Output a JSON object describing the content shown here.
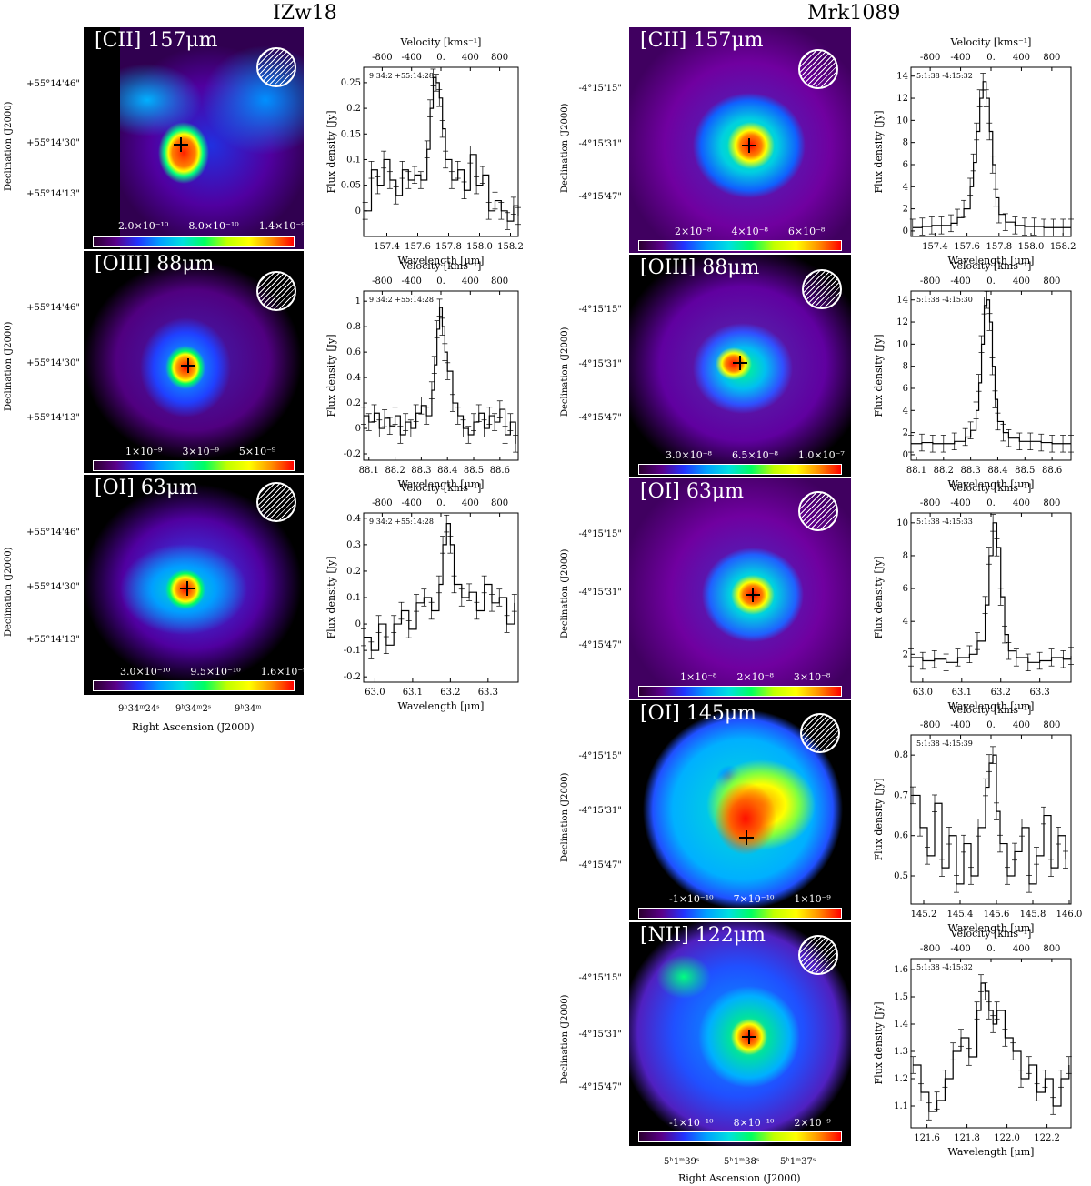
{
  "titles": {
    "left": "IZw18",
    "right": "Mrk1089"
  },
  "common": {
    "velocity_label": "Velocity [kms⁻¹]",
    "wavelength_label": "Wavelength [μm]",
    "flux_label": "Flux density [Jy]",
    "dec_axis_label": "Declination (J2000)",
    "ra_axis_label": "Right Ascension (J2000)",
    "velocity_ticks": [
      "-800",
      "-400",
      "0.",
      "400",
      "800"
    ]
  },
  "izw18": {
    "dec_ticks": [
      "+55°14'46\"",
      "+55°14'30\"",
      "+55°14'13\""
    ],
    "ra_ticks": [
      "9ʰ34ᵐ24ˢ",
      "9ʰ34ᵐ2ˢ",
      "9ʰ34ᵐ"
    ],
    "maps": [
      {
        "label": "[CII] 157μm",
        "cbar_ticks": [
          "2.0×10⁻¹⁰",
          "8.0×10⁻¹⁰",
          "1.4×10⁻⁹"
        ]
      },
      {
        "label": "[OIII] 88μm",
        "cbar_ticks": [
          "1×10⁻⁹",
          "3×10⁻⁹",
          "5×10⁻⁹"
        ]
      },
      {
        "label": "[OI] 63μm",
        "cbar_ticks": [
          "3.0×10⁻¹⁰",
          "9.5×10⁻¹⁰",
          "1.6×10⁻⁹"
        ]
      }
    ]
  },
  "mrk1089": {
    "dec_ticks": [
      "-4°15'15\"",
      "-4°15'31\"",
      "-4°15'47\""
    ],
    "ra_ticks": [
      "5ʰ1ᵐ39ˢ",
      "5ʰ1ᵐ38ˢ",
      "5ʰ1ᵐ37ˢ"
    ],
    "maps": [
      {
        "label": "[CII] 157μm",
        "cbar_ticks": [
          "2×10⁻⁸",
          "4×10⁻⁸",
          "6×10⁻⁸"
        ]
      },
      {
        "label": "[OIII] 88μm",
        "cbar_ticks": [
          "3.0×10⁻⁸",
          "6.5×10⁻⁸",
          "1.0×10⁻⁷"
        ]
      },
      {
        "label": "[OI] 63μm",
        "cbar_ticks": [
          "1×10⁻⁸",
          "2×10⁻⁸",
          "3×10⁻⁸"
        ]
      },
      {
        "label": "[OI] 145μm",
        "cbar_ticks": [
          "-1×10⁻¹⁰",
          "7×10⁻¹⁰",
          "1×10⁻⁹"
        ]
      },
      {
        "label": "[NII] 122μm",
        "cbar_ticks": [
          "-1×10⁻¹⁰",
          "8×10⁻¹⁰",
          "2×10⁻⁹"
        ]
      }
    ]
  },
  "chart_data": [
    {
      "type": "line",
      "id": "izw18-cii",
      "position_label": "9:34:2 +55:14:28",
      "xlim": [
        157.25,
        158.25
      ],
      "ylim": [
        -0.05,
        0.28
      ],
      "xticks": [
        157.4,
        157.6,
        157.8,
        158.0,
        158.2
      ],
      "yticks": [
        0.0,
        0.05,
        0.1,
        0.15,
        0.2,
        0.25
      ],
      "x": [
        157.26,
        157.3,
        157.34,
        157.38,
        157.42,
        157.46,
        157.5,
        157.54,
        157.58,
        157.62,
        157.66,
        157.68,
        157.7,
        157.72,
        157.74,
        157.76,
        157.78,
        157.82,
        157.86,
        157.9,
        157.94,
        157.98,
        158.02,
        158.06,
        158.1,
        158.14,
        158.18,
        158.22,
        158.25
      ],
      "y": [
        0.0,
        0.08,
        0.05,
        0.1,
        0.06,
        0.03,
        0.08,
        0.06,
        0.07,
        0.06,
        0.12,
        0.2,
        0.26,
        0.25,
        0.22,
        0.16,
        0.1,
        0.06,
        0.08,
        0.04,
        0.11,
        0.05,
        0.07,
        0.0,
        0.02,
        0.0,
        -0.02,
        0.01,
        -0.01
      ]
    },
    {
      "type": "line",
      "id": "izw18-oiii",
      "position_label": "9:34:2 +55:14:28",
      "xlim": [
        88.08,
        88.67
      ],
      "ylim": [
        -0.25,
        1.08
      ],
      "xticks": [
        88.1,
        88.2,
        88.3,
        88.4,
        88.5,
        88.6
      ],
      "yticks": [
        -0.2,
        0.0,
        0.2,
        0.4,
        0.6,
        0.8,
        1.0
      ],
      "x": [
        88.08,
        88.1,
        88.12,
        88.14,
        88.16,
        88.18,
        88.2,
        88.22,
        88.24,
        88.26,
        88.28,
        88.3,
        88.32,
        88.34,
        88.35,
        88.36,
        88.37,
        88.38,
        88.39,
        88.4,
        88.42,
        88.44,
        88.46,
        88.48,
        88.5,
        88.52,
        88.54,
        88.56,
        88.58,
        88.6,
        88.62,
        88.64,
        88.66
      ],
      "y": [
        0.1,
        0.05,
        0.12,
        0.0,
        0.08,
        0.02,
        0.1,
        -0.05,
        0.05,
        0.0,
        0.12,
        0.18,
        0.1,
        0.3,
        0.5,
        0.78,
        0.95,
        0.8,
        0.6,
        0.45,
        0.2,
        0.1,
        0.0,
        -0.05,
        0.05,
        0.12,
        0.0,
        0.1,
        0.05,
        0.15,
        -0.05,
        0.05,
        -0.12
      ]
    },
    {
      "type": "line",
      "id": "izw18-oi63",
      "position_label": "9:34:2 +55:14:28",
      "xlim": [
        62.97,
        63.38
      ],
      "ylim": [
        -0.22,
        0.42
      ],
      "xticks": [
        63.0,
        63.1,
        63.2,
        63.3
      ],
      "yticks": [
        -0.2,
        -0.1,
        0.0,
        0.1,
        0.2,
        0.3,
        0.4
      ],
      "x": [
        62.97,
        62.99,
        63.01,
        63.03,
        63.05,
        63.07,
        63.09,
        63.11,
        63.13,
        63.15,
        63.17,
        63.18,
        63.19,
        63.2,
        63.21,
        63.23,
        63.25,
        63.27,
        63.29,
        63.31,
        63.33,
        63.35,
        63.37
      ],
      "y": [
        -0.05,
        -0.1,
        0.0,
        -0.08,
        0.0,
        0.05,
        -0.02,
        0.08,
        0.1,
        0.05,
        0.15,
        0.3,
        0.38,
        0.3,
        0.15,
        0.1,
        0.12,
        0.05,
        0.15,
        0.08,
        0.1,
        0.0,
        0.08
      ]
    },
    {
      "type": "line",
      "id": "mrk1089-cii",
      "position_label": "5:1:38 -4:15:32",
      "xlim": [
        157.25,
        158.25
      ],
      "ylim": [
        -0.5,
        14.8
      ],
      "xticks": [
        157.4,
        157.6,
        157.8,
        158.0,
        158.2
      ],
      "yticks": [
        0,
        2,
        4,
        6,
        8,
        10,
        12,
        14
      ],
      "x": [
        157.26,
        157.32,
        157.38,
        157.44,
        157.5,
        157.54,
        157.58,
        157.62,
        157.64,
        157.66,
        157.68,
        157.7,
        157.72,
        157.74,
        157.76,
        157.78,
        157.8,
        157.84,
        157.9,
        157.96,
        158.02,
        158.08,
        158.14,
        158.2,
        158.25
      ],
      "y": [
        0.3,
        0.4,
        0.5,
        0.5,
        0.7,
        1.2,
        2.0,
        4.0,
        6.2,
        9.0,
        12.0,
        13.5,
        12.0,
        9.0,
        6.0,
        3.0,
        1.5,
        0.8,
        0.5,
        0.4,
        0.4,
        0.3,
        0.3,
        0.3,
        0.3
      ]
    },
    {
      "type": "line",
      "id": "mrk1089-oiii",
      "position_label": "5:1:38 -4:15:30",
      "xlim": [
        88.08,
        88.67
      ],
      "ylim": [
        -0.5,
        14.8
      ],
      "xticks": [
        88.1,
        88.2,
        88.3,
        88.4,
        88.5,
        88.6
      ],
      "yticks": [
        0,
        2,
        4,
        6,
        8,
        10,
        12,
        14
      ],
      "x": [
        88.08,
        88.12,
        88.16,
        88.2,
        88.24,
        88.28,
        88.3,
        88.32,
        88.33,
        88.34,
        88.35,
        88.36,
        88.37,
        88.38,
        88.39,
        88.4,
        88.42,
        88.44,
        88.48,
        88.52,
        88.56,
        88.6,
        88.64,
        88.67
      ],
      "y": [
        1.0,
        1.1,
        1.0,
        1.0,
        1.2,
        1.6,
        2.2,
        4.0,
        6.5,
        10.0,
        13.5,
        14.0,
        12.0,
        8.0,
        5.0,
        3.0,
        2.0,
        1.5,
        1.2,
        1.2,
        1.1,
        1.0,
        1.0,
        1.0
      ]
    },
    {
      "type": "line",
      "id": "mrk1089-oi63",
      "position_label": "5:1:38 -4:15:33",
      "xlim": [
        62.97,
        63.38
      ],
      "ylim": [
        0.3,
        10.6
      ],
      "xticks": [
        63.0,
        63.1,
        63.2,
        63.3
      ],
      "yticks": [
        2,
        4,
        6,
        8,
        10
      ],
      "x": [
        62.97,
        63.0,
        63.03,
        63.06,
        63.09,
        63.12,
        63.14,
        63.16,
        63.17,
        63.18,
        63.19,
        63.2,
        63.21,
        63.22,
        63.24,
        63.27,
        63.3,
        63.33,
        63.36,
        63.38
      ],
      "y": [
        1.8,
        1.6,
        1.7,
        1.5,
        1.8,
        2.0,
        2.8,
        5.0,
        8.0,
        10.0,
        8.5,
        5.5,
        3.2,
        2.2,
        1.8,
        1.5,
        1.6,
        1.8,
        1.7,
        1.9
      ]
    },
    {
      "type": "line",
      "id": "mrk1089-oi145",
      "position_label": "5:1:38 -4:15:39",
      "xlim": [
        145.13,
        146.01
      ],
      "ylim": [
        0.43,
        0.85
      ],
      "xticks": [
        145.2,
        145.4,
        145.6,
        145.8,
        146.0
      ],
      "yticks": [
        0.5,
        0.6,
        0.7,
        0.8
      ],
      "x": [
        145.14,
        145.18,
        145.22,
        145.26,
        145.3,
        145.34,
        145.38,
        145.42,
        145.46,
        145.5,
        145.54,
        145.56,
        145.58,
        145.6,
        145.62,
        145.66,
        145.7,
        145.74,
        145.78,
        145.82,
        145.86,
        145.9,
        145.94,
        145.98
      ],
      "y": [
        0.7,
        0.62,
        0.55,
        0.68,
        0.52,
        0.6,
        0.48,
        0.58,
        0.5,
        0.62,
        0.72,
        0.78,
        0.8,
        0.66,
        0.58,
        0.5,
        0.56,
        0.62,
        0.48,
        0.55,
        0.65,
        0.52,
        0.6,
        0.54
      ]
    },
    {
      "type": "line",
      "id": "mrk1089-nii",
      "position_label": "5:1:38 -4:15:32",
      "xlim": [
        121.52,
        122.32
      ],
      "ylim": [
        1.02,
        1.64
      ],
      "xticks": [
        121.6,
        121.8,
        122.0,
        122.2
      ],
      "yticks": [
        1.1,
        1.2,
        1.3,
        1.4,
        1.5,
        1.6
      ],
      "x": [
        121.53,
        121.57,
        121.61,
        121.65,
        121.69,
        121.73,
        121.77,
        121.81,
        121.85,
        121.87,
        121.89,
        121.91,
        121.93,
        121.95,
        121.99,
        122.03,
        122.07,
        122.11,
        122.15,
        122.19,
        122.23,
        122.27,
        122.31
      ],
      "y": [
        1.25,
        1.15,
        1.08,
        1.12,
        1.2,
        1.3,
        1.35,
        1.28,
        1.45,
        1.55,
        1.52,
        1.45,
        1.4,
        1.45,
        1.35,
        1.3,
        1.2,
        1.25,
        1.15,
        1.2,
        1.1,
        1.2,
        1.25
      ]
    }
  ]
}
